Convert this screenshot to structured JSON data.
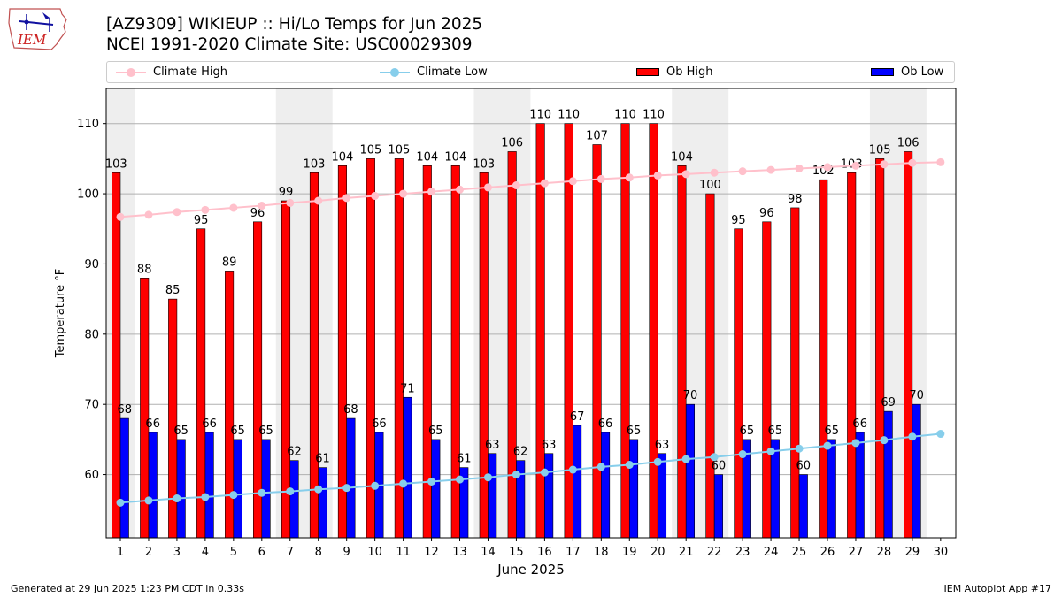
{
  "title_line1": "[AZ9309] WIKIEUP :: Hi/Lo Temps for Jun 2025",
  "title_line2": "NCEI 1991-2020 Climate Site: USC00029309",
  "logo_text": "IEM",
  "footer_left": "Generated at 29 Jun 2025 1:23 PM CDT in 0.33s",
  "footer_right": "IEM Autoplot App #17",
  "legend": [
    {
      "label": "Climate High",
      "kind": "line",
      "color": "#ffc0cb"
    },
    {
      "label": "Climate Low",
      "kind": "line",
      "color": "#87ceeb"
    },
    {
      "label": "Ob High",
      "kind": "bar",
      "color": "#ff0000"
    },
    {
      "label": "Ob Low",
      "kind": "bar",
      "color": "#0000ff"
    }
  ],
  "chart_data": {
    "type": "bar",
    "xlabel": "June 2025",
    "ylabel": "Temperature $^\\circ$F",
    "ylabel_text": "Temperature",
    "ylabel_unit": "°F",
    "ylim": [
      51,
      115
    ],
    "yticks": [
      60,
      70,
      80,
      90,
      100,
      110
    ],
    "grid": "horizontal",
    "legend_position": "top",
    "weekend_shading": [
      [
        1,
        1
      ],
      [
        7,
        8
      ],
      [
        14,
        15
      ],
      [
        21,
        22
      ],
      [
        28,
        29
      ]
    ],
    "categories": [
      "1",
      "2",
      "3",
      "4",
      "5",
      "6",
      "7",
      "8",
      "9",
      "10",
      "11",
      "12",
      "13",
      "14",
      "15",
      "16",
      "17",
      "18",
      "19",
      "20",
      "21",
      "22",
      "23",
      "24",
      "25",
      "26",
      "27",
      "28",
      "29",
      "30"
    ],
    "series": [
      {
        "name": "Ob High",
        "kind": "bar",
        "color": "#ff0000",
        "values": [
          103,
          88,
          85,
          95,
          89,
          96,
          99,
          103,
          104,
          105,
          105,
          104,
          104,
          103,
          106,
          110,
          110,
          107,
          110,
          110,
          104,
          100,
          95,
          96,
          98,
          102,
          103,
          105,
          106,
          null
        ]
      },
      {
        "name": "Ob Low",
        "kind": "bar",
        "color": "#0000ff",
        "values": [
          68,
          66,
          65,
          66,
          65,
          65,
          62,
          61,
          68,
          66,
          71,
          65,
          61,
          63,
          62,
          63,
          67,
          66,
          65,
          63,
          70,
          60,
          65,
          65,
          60,
          65,
          66,
          69,
          70,
          null
        ]
      },
      {
        "name": "Climate High",
        "kind": "line",
        "color": "#ffc0cb",
        "values": [
          96.7,
          97.0,
          97.4,
          97.7,
          98.0,
          98.3,
          98.7,
          99.0,
          99.4,
          99.7,
          100.0,
          100.3,
          100.6,
          100.9,
          101.2,
          101.5,
          101.8,
          102.1,
          102.3,
          102.6,
          102.8,
          103.0,
          103.2,
          103.4,
          103.6,
          103.8,
          104.0,
          104.2,
          104.4,
          104.5
        ]
      },
      {
        "name": "Climate Low",
        "kind": "line",
        "color": "#87ceeb",
        "values": [
          56.0,
          56.3,
          56.6,
          56.8,
          57.1,
          57.4,
          57.6,
          57.9,
          58.1,
          58.4,
          58.7,
          59.0,
          59.3,
          59.6,
          60.0,
          60.3,
          60.7,
          61.1,
          61.4,
          61.8,
          62.2,
          62.5,
          62.9,
          63.3,
          63.7,
          64.1,
          64.5,
          64.9,
          65.4,
          65.8
        ]
      }
    ]
  }
}
